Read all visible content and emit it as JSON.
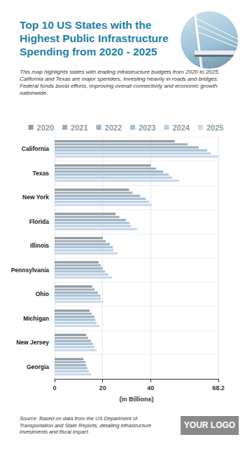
{
  "chart_data": {
    "type": "bar",
    "title": "Top 10 US States with the Highest Public Infrastructure Spending from 2020 - 2025",
    "subtitle": "This map highlights states with leading infrastructure budgets from 2020 to 2025. California and Texas are major spenders, investing heavily in roads and bridges. Federal funds boost efforts, improving overall connectivity and economic growth nationwide.",
    "source": "Source: Based on data from the US Department of Transportation and State Reports, detailing infrastructure investments and fiscal impact.",
    "logo": "YOUR LOGO",
    "x_label": "(in Billions)",
    "orientation": "horizontal",
    "categories": [
      "California",
      "Texas",
      "New York",
      "Florida",
      "Illinois",
      "Pennsylvania",
      "Ohio",
      "Michigan",
      "New Jersey",
      "Georgia"
    ],
    "series": [
      {
        "name": "2020",
        "color": "#8e9ca5",
        "values": [
          50,
          40,
          31,
          25.4,
          20,
          18.4,
          15.7,
          14.6,
          13.1,
          12
        ]
      },
      {
        "name": "2021",
        "color": "#a2adb4",
        "values": [
          55.4,
          42.3,
          32.4,
          27,
          21.3,
          19.2,
          16.6,
          15.4,
          14,
          12.8
        ]
      },
      {
        "name": "2022",
        "color": "#9cb2c3",
        "values": [
          60,
          45.2,
          35.6,
          29.7,
          23,
          20,
          18,
          16.6,
          15.2,
          13.1
        ]
      },
      {
        "name": "2023",
        "color": "#a9c3d6",
        "values": [
          63.5,
          47.5,
          38,
          31.2,
          24.2,
          21,
          19,
          17,
          16,
          13.7
        ]
      },
      {
        "name": "2024",
        "color": "#b8cfe0",
        "values": [
          65,
          49,
          39.4,
          31.8,
          24.5,
          22.4,
          19.2,
          17.5,
          16.6,
          14.3
        ]
      },
      {
        "name": "2025",
        "color": "#cbd9ec",
        "values": [
          68.2,
          52,
          40.5,
          34.4,
          26.2,
          24,
          20,
          18.6,
          17.5,
          15.2
        ]
      }
    ],
    "xlim": [
      0,
      68.2
    ],
    "xticks": [
      0,
      20,
      40,
      68.2
    ],
    "grid": true,
    "legend": "top"
  }
}
